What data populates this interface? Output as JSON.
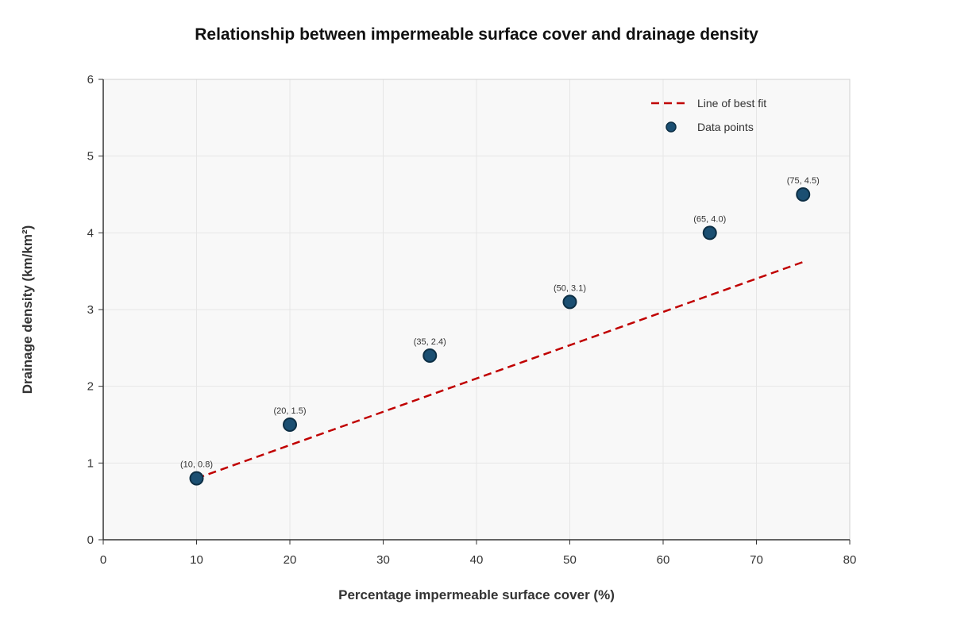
{
  "chart_data": {
    "type": "scatter",
    "title": "Relationship between impermeable surface cover and drainage density",
    "xlabel": "Percentage impermeable surface cover (%)",
    "ylabel": "Drainage density (km/km²)",
    "xlim": [
      0,
      80
    ],
    "ylim": [
      0,
      6
    ],
    "xticks": [
      0,
      10,
      20,
      30,
      40,
      50,
      60,
      70,
      80
    ],
    "yticks": [
      0,
      1,
      2,
      3,
      4,
      5,
      6
    ],
    "grid": true,
    "legend_position": "top-right",
    "series": [
      {
        "name": "Data points",
        "kind": "scatter",
        "color": "#1b4f72",
        "points": [
          {
            "x": 10,
            "y": 0.8,
            "label": "(10, 0.8)"
          },
          {
            "x": 20,
            "y": 1.5,
            "label": "(20, 1.5)"
          },
          {
            "x": 35,
            "y": 2.4,
            "label": "(35, 2.4)"
          },
          {
            "x": 50,
            "y": 3.1,
            "label": "(50, 3.1)"
          },
          {
            "x": 65,
            "y": 4.0,
            "label": "(65, 4.0)"
          },
          {
            "x": 75,
            "y": 4.5,
            "label": "(75, 4.5)"
          }
        ]
      },
      {
        "name": "Line of best fit",
        "kind": "line",
        "style": "dashed",
        "color": "#c00000",
        "points": [
          {
            "x": 10,
            "y": 0.8
          },
          {
            "x": 75,
            "y": 3.62
          }
        ]
      }
    ],
    "legend": [
      {
        "label": "Line of best fit",
        "marker": "dashed-line",
        "color": "#c00000"
      },
      {
        "label": "Data points",
        "marker": "circle",
        "color": "#1b4f72"
      }
    ],
    "colors": {
      "plot_background": "#f8f8f8",
      "grid": "#e6e6e6",
      "axis": "#333333",
      "point_stroke": "#0d2f45"
    }
  }
}
